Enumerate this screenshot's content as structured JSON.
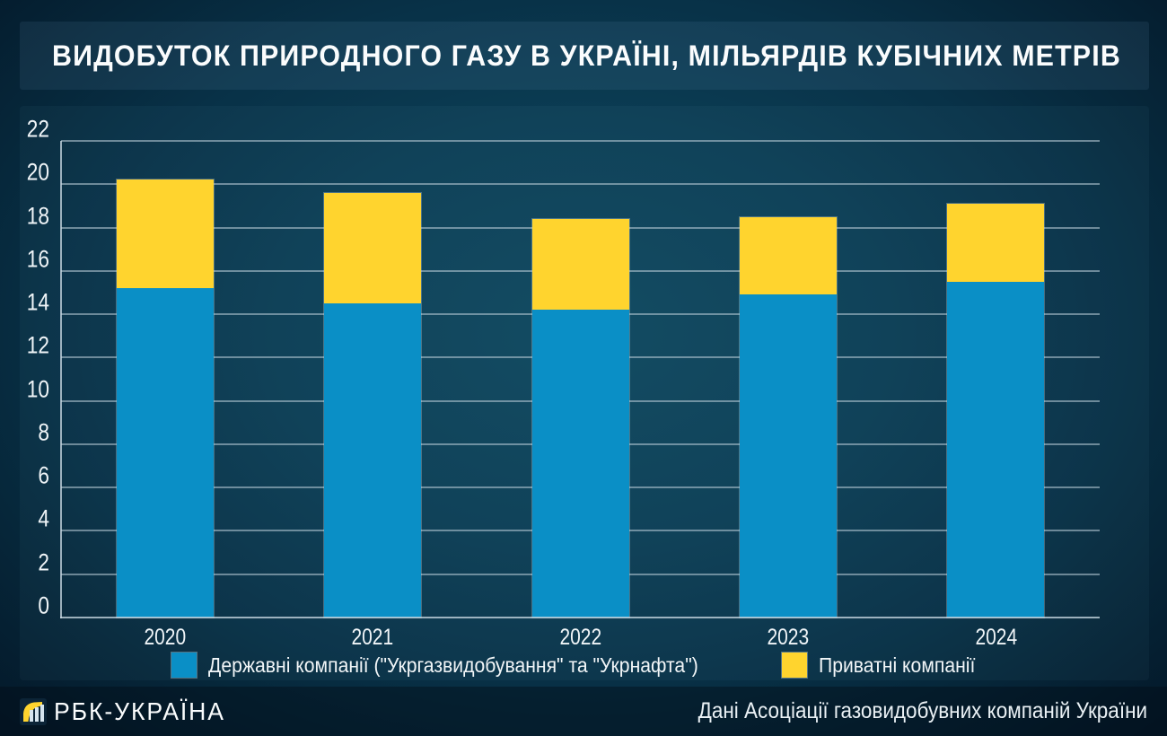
{
  "title": "ВИДОБУТОК ПРИРОДНОГО ГАЗУ В УКРАЇНІ, МІЛЬЯРДІВ КУБІЧНИХ МЕТРІВ",
  "footer": {
    "brand": "РБК-УКРАЇНА",
    "source": "Дані Асоціації газовидобувних компаній України"
  },
  "colors": {
    "state_blue": "#0a8fc6",
    "private_yellow": "#ffd42e",
    "gridline": "rgba(190,208,219,0.55)",
    "background_center": "#0e465d",
    "background_edge": "#04192a",
    "text": "#f2f6f8"
  },
  "chart_data": {
    "type": "bar",
    "stacked": true,
    "title": "ВИДОБУТОК ПРИРОДНОГО ГАЗУ В УКРАЇНІ, МІЛЬЯРДІВ КУБІЧНИХ МЕТРІВ",
    "categories": [
      "2020",
      "2021",
      "2022",
      "2023",
      "2024"
    ],
    "series": [
      {
        "name": "Державні компанії (\"Укргазвидобування\" та \"Укрнафта\")",
        "color": "#0a8fc6",
        "values": [
          15.2,
          14.5,
          14.2,
          14.9,
          15.5
        ]
      },
      {
        "name": "Приватні компанії",
        "color": "#ffd42e",
        "values": [
          5.0,
          5.1,
          4.2,
          3.6,
          3.6
        ]
      }
    ],
    "totals": [
      20.2,
      19.6,
      18.4,
      18.5,
      19.1
    ],
    "xlabel": "",
    "ylabel": "",
    "ylim": [
      0,
      22
    ],
    "ytick_step": 2,
    "yticks": [
      0,
      2,
      4,
      6,
      8,
      10,
      12,
      14,
      16,
      18,
      20,
      22
    ],
    "grid": true,
    "legend_position": "bottom"
  }
}
